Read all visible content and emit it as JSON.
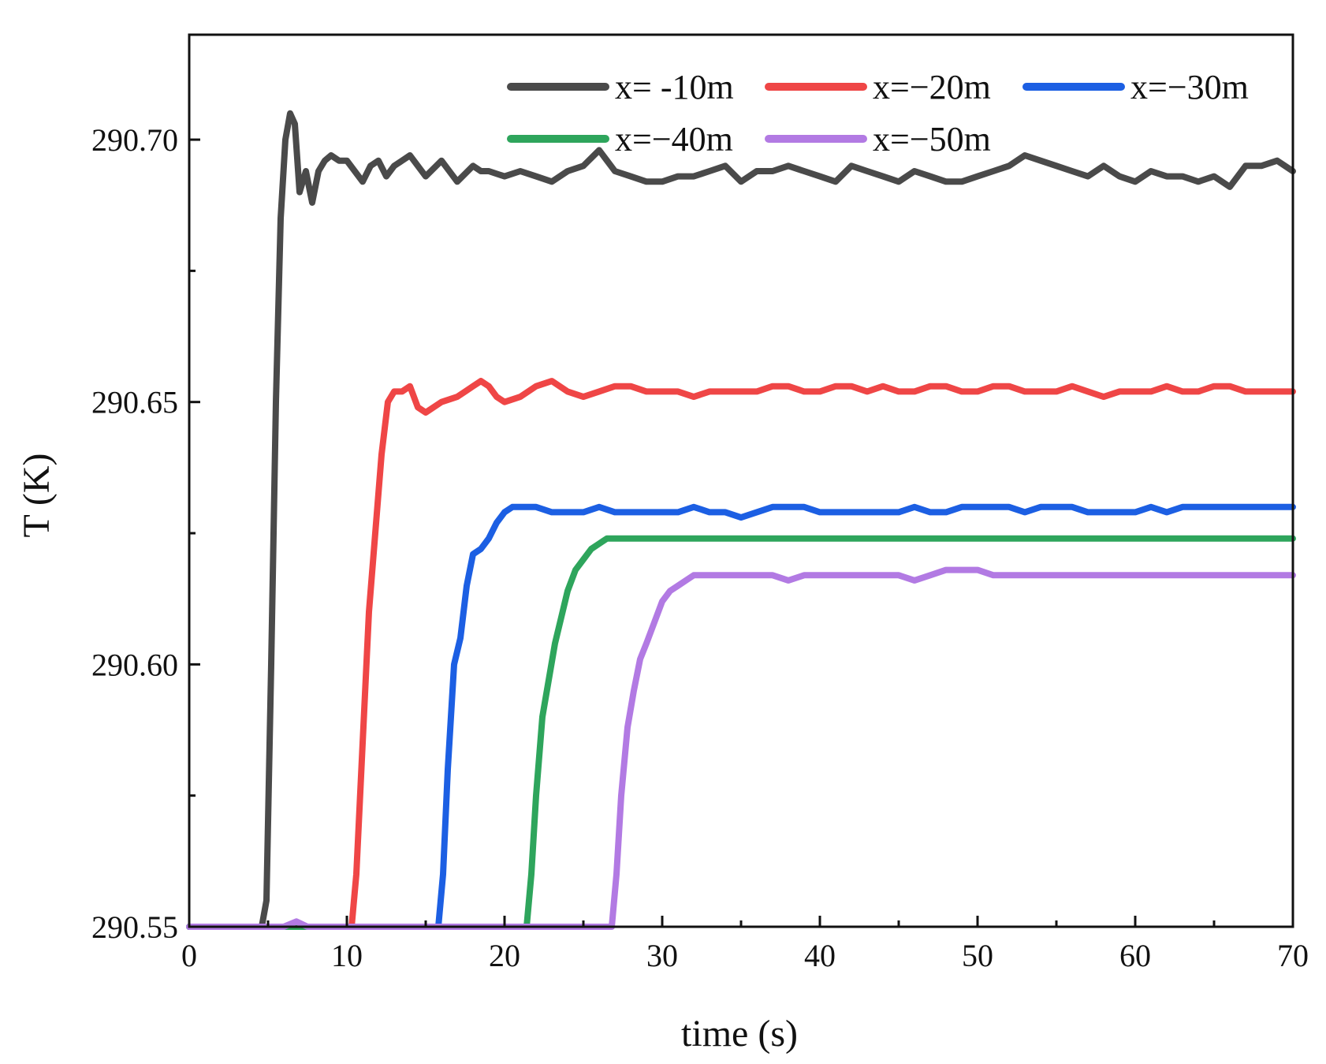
{
  "chart_data": {
    "type": "line",
    "title": "",
    "xlabel": "time (s)",
    "ylabel": "T (K)",
    "xlim": [
      0,
      70
    ],
    "ylim": [
      290.55,
      290.72
    ],
    "x_ticks": [
      "0",
      "10",
      "20",
      "30",
      "40",
      "50",
      "60",
      "70"
    ],
    "x_tick_values": [
      0,
      10,
      20,
      30,
      40,
      50,
      60,
      70
    ],
    "x_minor_tick_values": [
      5,
      15,
      25,
      35,
      45,
      55,
      65
    ],
    "y_ticks": [
      "290.55",
      "290.60",
      "290.65",
      "290.70"
    ],
    "y_tick_values": [
      290.55,
      290.6,
      290.65,
      290.7
    ],
    "y_minor_tick_values": [
      290.575,
      290.625,
      290.675
    ],
    "grid": false,
    "legend_position": "top-right",
    "series": [
      {
        "name": "x= -10m",
        "color": "#4a4a4a",
        "x": [
          0,
          4.6,
          4.9,
          5.2,
          5.5,
          5.8,
          6.1,
          6.4,
          6.7,
          7.0,
          7.4,
          7.8,
          8.2,
          8.6,
          9,
          9.5,
          10,
          11,
          11.5,
          12,
          12.5,
          13,
          13.5,
          14,
          15,
          16,
          16.5,
          17,
          18,
          18.5,
          19,
          20,
          21,
          22,
          23,
          24,
          25,
          26,
          26.5,
          27,
          28,
          29,
          30,
          31,
          32,
          33,
          34,
          35,
          36,
          37,
          38,
          39,
          40,
          41,
          42,
          43,
          44,
          45,
          46,
          47,
          48,
          49,
          50,
          51,
          52,
          53,
          54,
          55,
          56,
          57,
          58,
          59,
          60,
          61,
          62,
          63,
          64,
          65,
          66,
          67,
          68,
          69,
          70
        ],
        "values": [
          290.55,
          290.55,
          290.555,
          290.6,
          290.65,
          290.685,
          290.7,
          290.705,
          290.703,
          290.69,
          290.694,
          290.688,
          290.694,
          290.696,
          290.697,
          290.696,
          290.696,
          290.692,
          290.695,
          290.696,
          290.693,
          290.695,
          290.696,
          290.697,
          290.693,
          290.696,
          290.694,
          290.692,
          290.695,
          290.694,
          290.694,
          290.693,
          290.694,
          290.693,
          290.692,
          290.694,
          290.695,
          290.698,
          290.696,
          290.694,
          290.693,
          290.692,
          290.692,
          290.693,
          290.693,
          290.694,
          290.695,
          290.692,
          290.694,
          290.694,
          290.695,
          290.694,
          290.693,
          290.692,
          290.695,
          290.694,
          290.693,
          290.692,
          290.694,
          290.693,
          290.692,
          290.692,
          290.693,
          290.694,
          290.695,
          290.697,
          290.696,
          290.695,
          290.694,
          290.693,
          290.695,
          290.693,
          290.692,
          290.694,
          290.693,
          290.693,
          290.692,
          290.693,
          290.691,
          290.695,
          290.695,
          290.696,
          290.694
        ]
      },
      {
        "name": "x=−20m",
        "color": "#ef4646",
        "x": [
          0,
          10.3,
          10.6,
          11.0,
          11.4,
          11.8,
          12.2,
          12.6,
          13,
          13.5,
          14,
          14.5,
          15,
          16,
          17,
          17.5,
          18,
          18.5,
          19,
          19.5,
          20,
          21,
          22,
          23,
          24,
          25,
          26,
          27,
          28,
          29,
          30,
          31,
          32,
          33,
          34,
          35,
          36,
          37,
          38,
          39,
          40,
          41,
          42,
          43,
          44,
          45,
          46,
          47,
          48,
          49,
          50,
          51,
          52,
          53,
          54,
          55,
          56,
          57,
          58,
          59,
          60,
          61,
          62,
          63,
          64,
          65,
          66,
          67,
          68,
          69,
          70
        ],
        "values": [
          290.55,
          290.55,
          290.56,
          290.585,
          290.61,
          290.625,
          290.64,
          290.65,
          290.652,
          290.652,
          290.653,
          290.649,
          290.648,
          290.65,
          290.651,
          290.652,
          290.653,
          290.654,
          290.653,
          290.651,
          290.65,
          290.651,
          290.653,
          290.654,
          290.652,
          290.651,
          290.652,
          290.653,
          290.653,
          290.652,
          290.652,
          290.652,
          290.651,
          290.652,
          290.652,
          290.652,
          290.652,
          290.653,
          290.653,
          290.652,
          290.652,
          290.653,
          290.653,
          290.652,
          290.653,
          290.652,
          290.652,
          290.653,
          290.653,
          290.652,
          290.652,
          290.653,
          290.653,
          290.652,
          290.652,
          290.652,
          290.653,
          290.652,
          290.651,
          290.652,
          290.652,
          290.652,
          290.653,
          290.652,
          290.652,
          290.653,
          290.653,
          290.652,
          290.652,
          290.652,
          290.652
        ]
      },
      {
        "name": "x=−30m",
        "color": "#1c5fe3",
        "x": [
          0,
          15.8,
          16.1,
          16.4,
          16.8,
          17.2,
          17.6,
          18.0,
          18.5,
          19,
          19.5,
          20,
          20.5,
          21,
          22,
          23,
          24,
          25,
          26,
          27,
          28,
          29,
          30,
          31,
          32,
          33,
          34,
          35,
          36,
          37,
          38,
          39,
          40,
          41,
          42,
          43,
          44,
          45,
          46,
          47,
          48,
          49,
          50,
          51,
          52,
          53,
          54,
          55,
          56,
          57,
          58,
          59,
          60,
          61,
          62,
          63,
          64,
          65,
          66,
          67,
          68,
          69,
          70
        ],
        "values": [
          290.55,
          290.55,
          290.56,
          290.58,
          290.6,
          290.605,
          290.615,
          290.621,
          290.622,
          290.624,
          290.627,
          290.629,
          290.63,
          290.63,
          290.63,
          290.629,
          290.629,
          290.629,
          290.63,
          290.629,
          290.629,
          290.629,
          290.629,
          290.629,
          290.63,
          290.629,
          290.629,
          290.628,
          290.629,
          290.63,
          290.63,
          290.63,
          290.629,
          290.629,
          290.629,
          290.629,
          290.629,
          290.629,
          290.63,
          290.629,
          290.629,
          290.63,
          290.63,
          290.63,
          290.63,
          290.629,
          290.63,
          290.63,
          290.63,
          290.629,
          290.629,
          290.629,
          290.629,
          290.63,
          290.629,
          290.63,
          290.63,
          290.63,
          290.63,
          290.63,
          290.63,
          290.63,
          290.63
        ]
      },
      {
        "name": "x=−40m",
        "color": "#2ea55c",
        "x": [
          0,
          21.4,
          21.7,
          22.0,
          22.4,
          22.8,
          23.2,
          23.6,
          24.0,
          24.5,
          25,
          25.5,
          26,
          26.5,
          27,
          28,
          29,
          30,
          32,
          34,
          36,
          38,
          40,
          42,
          44,
          46,
          48,
          50,
          52,
          54,
          56,
          58,
          60,
          62,
          64,
          66,
          68,
          70
        ],
        "values": [
          290.55,
          290.55,
          290.56,
          290.575,
          290.59,
          290.597,
          290.604,
          290.609,
          290.614,
          290.618,
          290.62,
          290.622,
          290.623,
          290.624,
          290.624,
          290.624,
          290.624,
          290.624,
          290.624,
          290.624,
          290.624,
          290.624,
          290.624,
          290.624,
          290.624,
          290.624,
          290.624,
          290.624,
          290.624,
          290.624,
          290.624,
          290.624,
          290.624,
          290.624,
          290.624,
          290.624,
          290.624,
          290.624
        ]
      },
      {
        "name": "x=−50m",
        "color": "#b27ae3",
        "x": [
          0,
          2,
          4,
          6,
          6.8,
          7.5,
          10,
          14,
          18,
          22,
          26.8,
          27.1,
          27.4,
          27.8,
          28.2,
          28.6,
          29.0,
          29.5,
          30,
          30.5,
          31,
          31.5,
          32,
          33,
          34,
          35,
          36,
          37,
          38,
          39,
          40,
          41,
          42,
          43,
          44,
          45,
          46,
          47,
          48,
          49,
          50,
          51,
          52,
          53,
          54,
          55,
          56,
          57,
          58,
          59,
          60,
          61,
          62,
          63,
          64,
          65,
          66,
          67,
          68,
          69,
          70
        ],
        "values": [
          290.55,
          290.55,
          290.55,
          290.55,
          290.551,
          290.55,
          290.55,
          290.55,
          290.55,
          290.55,
          290.55,
          290.56,
          290.575,
          290.588,
          290.595,
          290.601,
          290.604,
          290.608,
          290.612,
          290.614,
          290.615,
          290.616,
          290.617,
          290.617,
          290.617,
          290.617,
          290.617,
          290.617,
          290.616,
          290.617,
          290.617,
          290.617,
          290.617,
          290.617,
          290.617,
          290.617,
          290.616,
          290.617,
          290.618,
          290.618,
          290.618,
          290.617,
          290.617,
          290.617,
          290.617,
          290.617,
          290.617,
          290.617,
          290.617,
          290.617,
          290.617,
          290.617,
          290.617,
          290.617,
          290.617,
          290.617,
          290.617,
          290.617,
          290.617,
          290.617,
          290.617
        ]
      }
    ]
  }
}
